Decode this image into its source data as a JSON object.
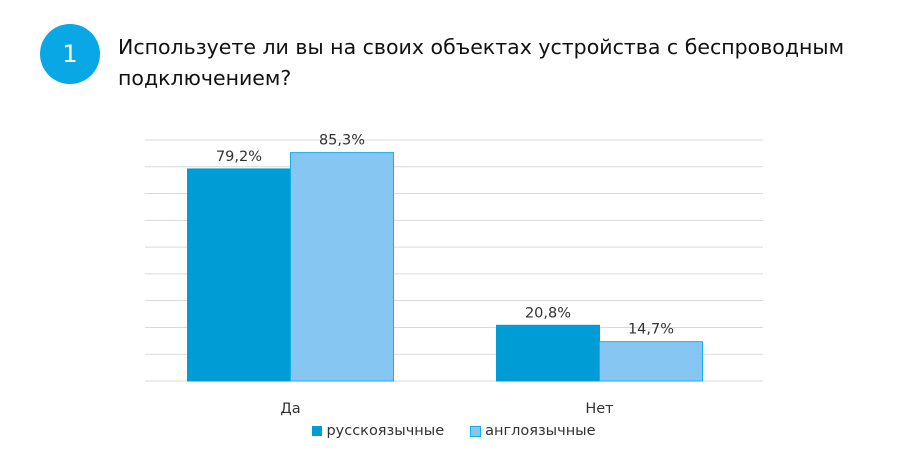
{
  "question_number": "1",
  "title": "Используете ли вы на своих объектах устройства с беспроводным подключением?",
  "chart_data": {
    "type": "bar",
    "categories": [
      "Да",
      "Нет"
    ],
    "series": [
      {
        "name": "русскоязычные",
        "values": [
          79.2,
          20.8
        ],
        "labels": [
          "79,2%",
          "20,8%"
        ],
        "color": "#009cd6"
      },
      {
        "name": "англоязычные",
        "values": [
          85.3,
          14.7
        ],
        "labels": [
          "85,3%",
          "14,7%"
        ],
        "color": "#85c6f3"
      }
    ],
    "ylim": [
      0,
      90
    ],
    "grid": true,
    "legend": "bottom",
    "y_tick_labels_shown": false
  }
}
